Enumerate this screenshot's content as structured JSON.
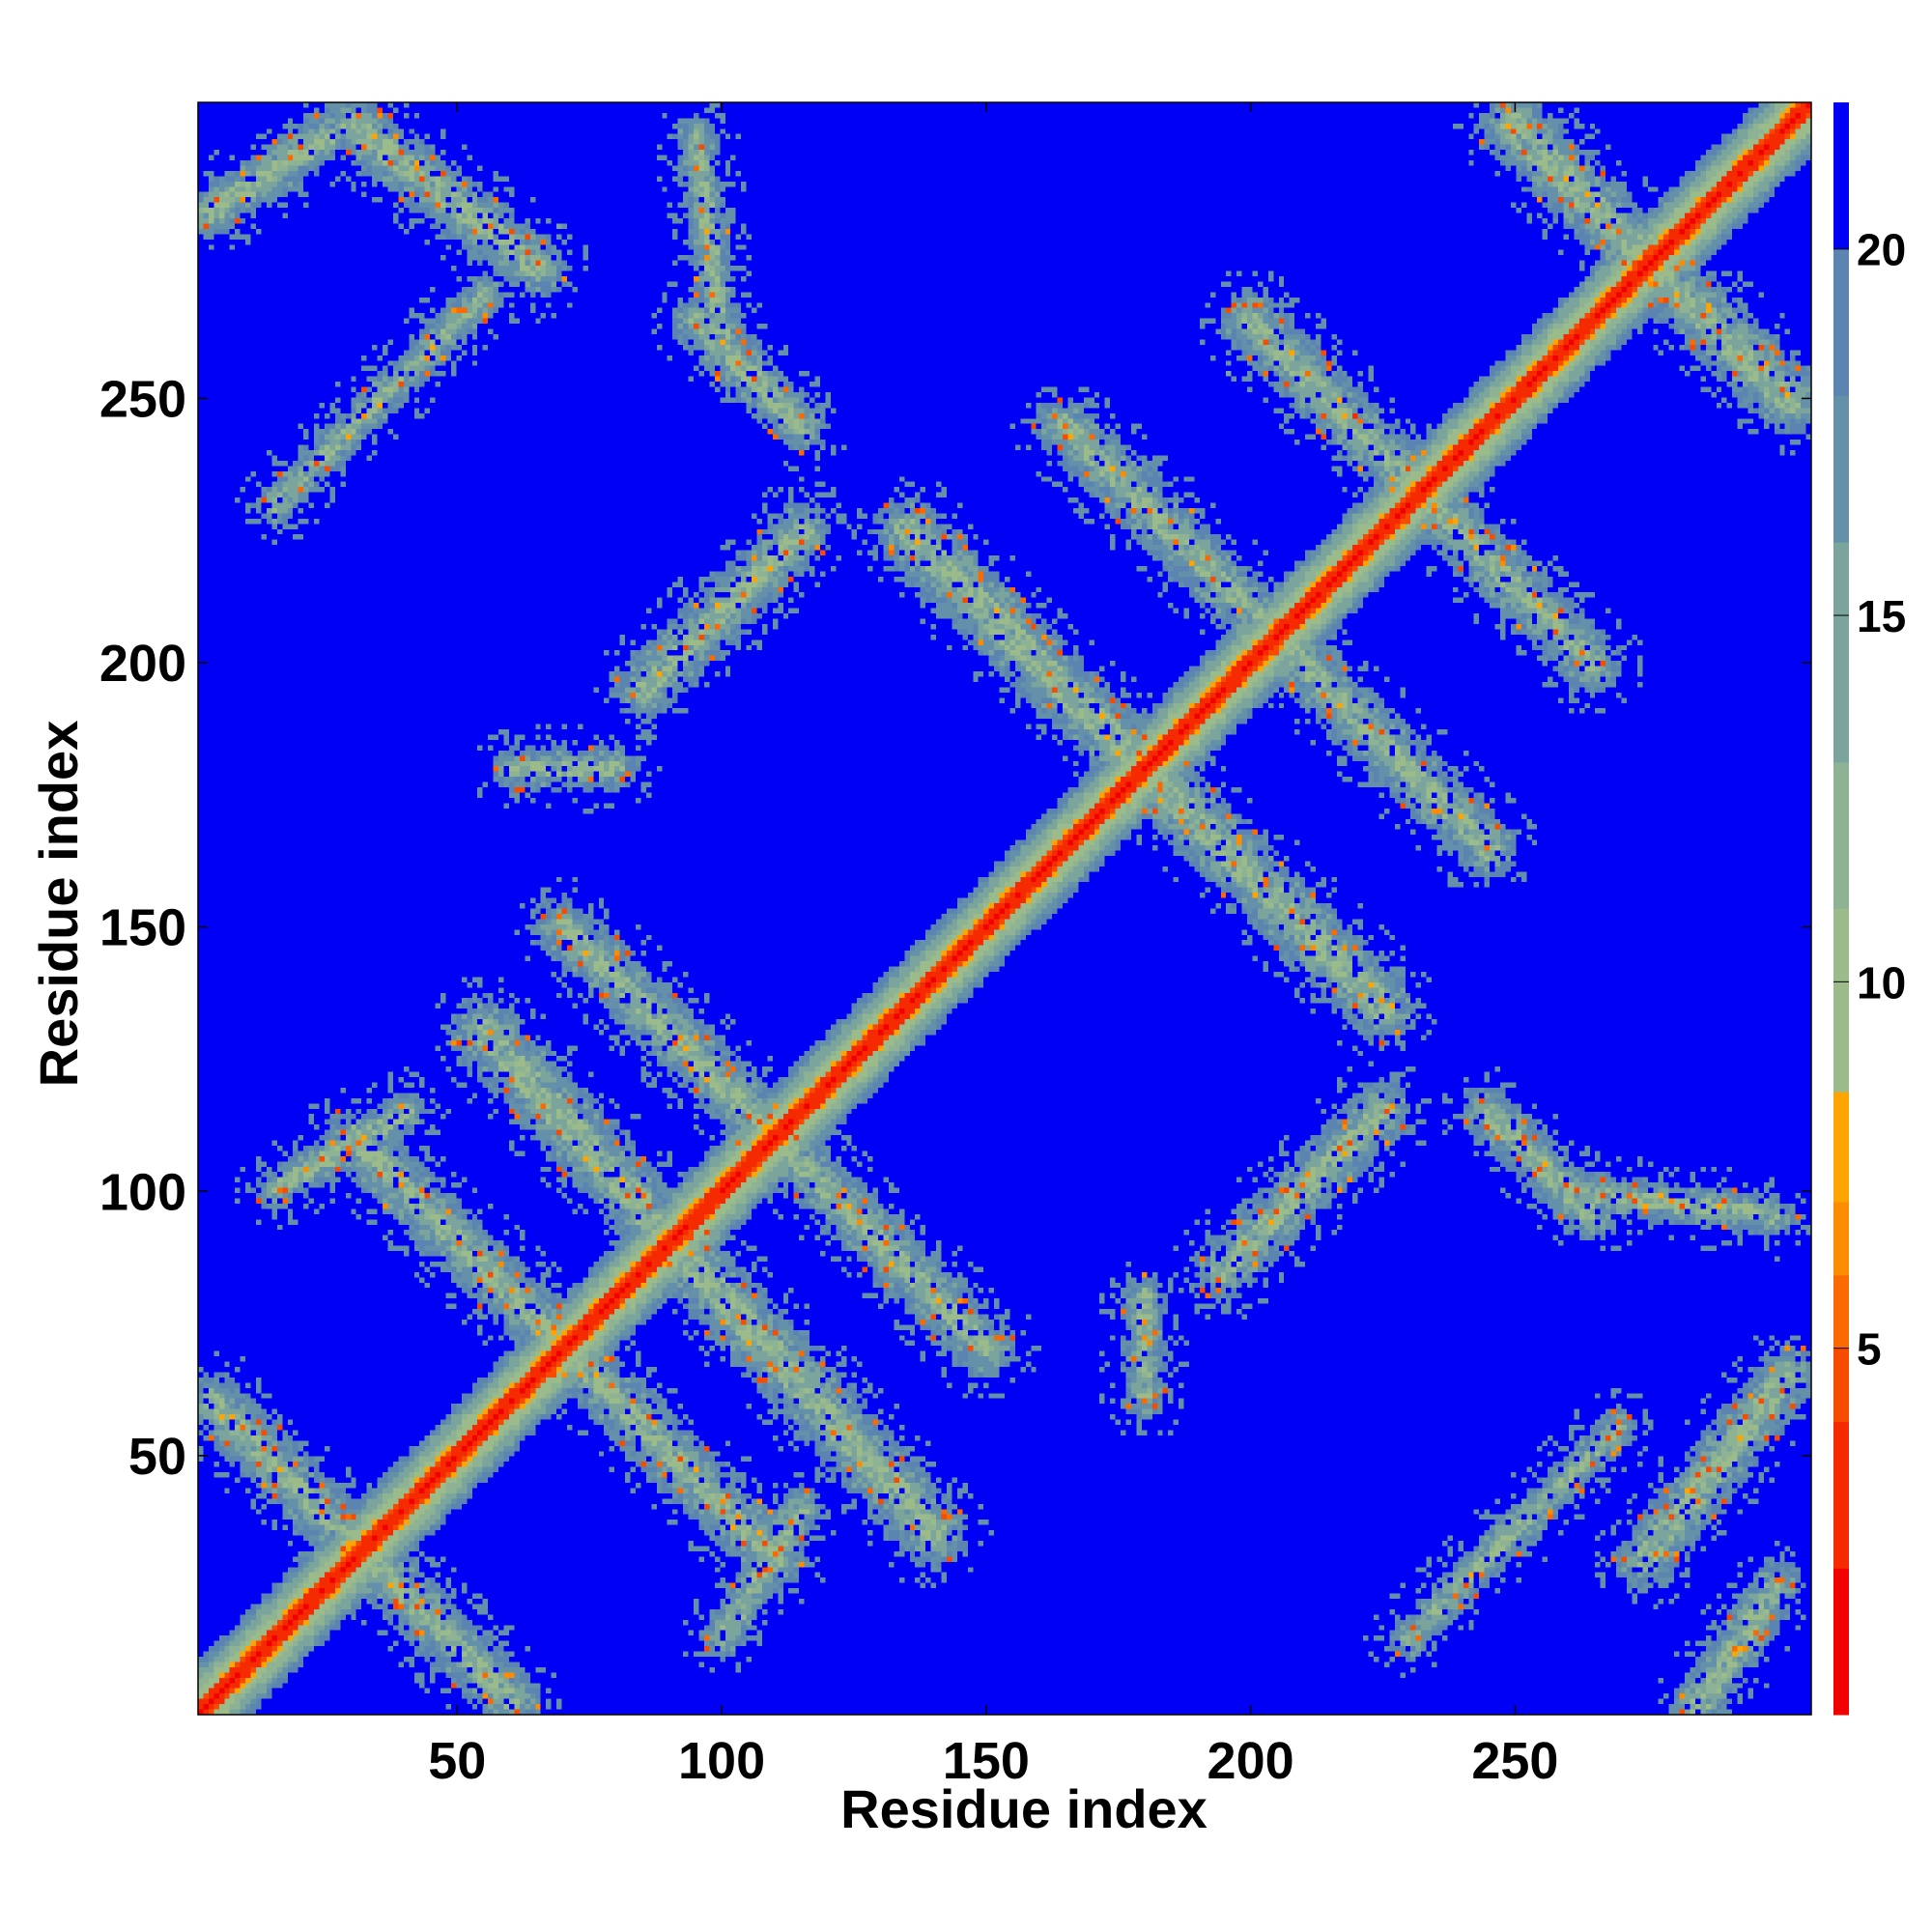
{
  "chart_data": {
    "type": "heatmap",
    "title": "",
    "xlabel": "Residue index",
    "ylabel": "Residue index",
    "n_residues": 306,
    "xlim": [
      1,
      306
    ],
    "ylim": [
      1,
      306
    ],
    "x_ticks": [
      50,
      100,
      150,
      200,
      250
    ],
    "y_ticks": [
      50,
      100,
      150,
      200,
      250
    ],
    "colorbar": {
      "ticks": [
        5,
        10,
        15,
        20
      ],
      "range": [
        0,
        22
      ],
      "colors": [
        {
          "max": 2,
          "color": "#f20000"
        },
        {
          "max": 4,
          "color": "#f52a00"
        },
        {
          "max": 5,
          "color": "#f74c00"
        },
        {
          "max": 6,
          "color": "#fa6a00"
        },
        {
          "max": 7,
          "color": "#fc8c00"
        },
        {
          "max": 8.5,
          "color": "#ffa400"
        },
        {
          "max": 11,
          "color": "#9cbb8a"
        },
        {
          "max": 13,
          "color": "#8db394"
        },
        {
          "max": 16,
          "color": "#7aa49c"
        },
        {
          "max": 18,
          "color": "#6590aa"
        },
        {
          "max": 20,
          "color": "#5b85b0"
        },
        {
          "max": 22,
          "color": "#0000f5"
        }
      ]
    },
    "background_color": "#0000f5",
    "diagonal_band": {
      "core_width": 2,
      "band_width": 10
    },
    "contact_bands": [
      {
        "note": "antiparallel",
        "x1": 3,
        "y1": 60,
        "x2": 60,
        "y2": 3,
        "w": 6
      },
      {
        "note": "antiparallel",
        "x1": 55,
        "y1": 130,
        "x2": 140,
        "y2": 35,
        "w": 7
      },
      {
        "note": "antiparallel",
        "x1": 70,
        "y1": 150,
        "x2": 150,
        "y2": 70,
        "w": 6
      },
      {
        "note": "antiparallel",
        "x1": 30,
        "y1": 110,
        "x2": 110,
        "y2": 30,
        "w": 6
      },
      {
        "note": "antiparallel",
        "x1": 135,
        "y1": 225,
        "x2": 225,
        "y2": 135,
        "w": 7
      },
      {
        "note": "antiparallel",
        "x1": 165,
        "y1": 245,
        "x2": 245,
        "y2": 165,
        "w": 6
      },
      {
        "note": "antiparallel",
        "x1": 200,
        "y1": 265,
        "x2": 265,
        "y2": 200,
        "w": 6
      },
      {
        "note": "antiparallel",
        "x1": 250,
        "y1": 302,
        "x2": 302,
        "y2": 250,
        "w": 7
      },
      {
        "note": "antiparallel",
        "x1": 2,
        "y1": 285,
        "x2": 25,
        "y2": 300,
        "w": 5
      },
      {
        "note": "antiparallel",
        "x1": 30,
        "y1": 302,
        "x2": 65,
        "y2": 275,
        "w": 6
      },
      {
        "note": "antiparallel",
        "x1": 285,
        "y1": 2,
        "x2": 300,
        "y2": 25,
        "w": 5
      },
      {
        "note": "antiparallel",
        "x1": 275,
        "y1": 30,
        "x2": 302,
        "y2": 65,
        "w": 6
      },
      {
        "note": "parallel",
        "x1": 85,
        "y1": 195,
        "x2": 115,
        "y2": 225,
        "w": 6
      },
      {
        "note": "parallel",
        "x1": 195,
        "y1": 85,
        "x2": 225,
        "y2": 115,
        "w": 6
      },
      {
        "note": "parallel",
        "x1": 180,
        "y1": 60,
        "x2": 180,
        "y2": 80,
        "w": 4
      },
      {
        "note": "parallel",
        "x1": 60,
        "y1": 180,
        "x2": 80,
        "y2": 180,
        "w": 4
      },
      {
        "note": "parallel",
        "x1": 95,
        "y1": 265,
        "x2": 115,
        "y2": 245,
        "w": 5
      },
      {
        "note": "parallel",
        "x1": 265,
        "y1": 95,
        "x2": 245,
        "y2": 115,
        "w": 5
      },
      {
        "note": "parallel",
        "x1": 15,
        "y1": 230,
        "x2": 55,
        "y2": 270,
        "w": 4
      },
      {
        "note": "parallel",
        "x1": 230,
        "y1": 15,
        "x2": 270,
        "y2": 55,
        "w": 4
      },
      {
        "note": "parallel",
        "x1": 100,
        "y1": 15,
        "x2": 115,
        "y2": 40,
        "w": 4
      },
      {
        "note": "parallel",
        "x1": 15,
        "y1": 100,
        "x2": 40,
        "y2": 115,
        "w": 4
      },
      {
        "note": "parallel",
        "x1": 260,
        "y1": 100,
        "x2": 300,
        "y2": 95,
        "w": 4
      },
      {
        "note": "parallel",
        "x1": 100,
        "y1": 260,
        "x2": 95,
        "y2": 300,
        "w": 4
      }
    ]
  }
}
